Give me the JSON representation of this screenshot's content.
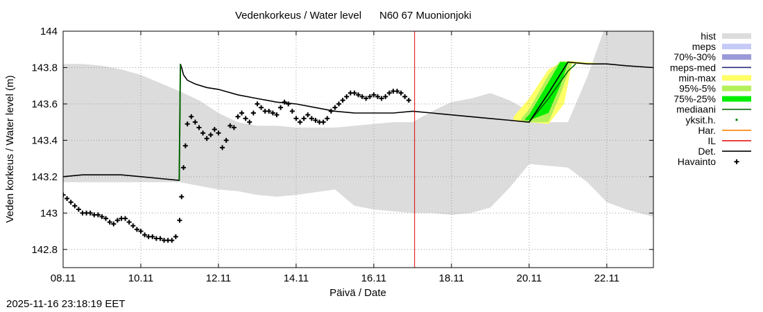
{
  "chart_data": {
    "type": "line",
    "title_left": "Vedenkorkeus / Water level",
    "title_right": "N60 67 Muonionjoki",
    "xlabel": "Päivä / Date",
    "ylabel": "Veden korkeus / Water level (m)",
    "x_unit": "days since 08.11",
    "xlim": [
      0,
      15.2
    ],
    "ylim": [
      142.7,
      144.0
    ],
    "grid": true,
    "x_ticks": [
      {
        "x": 0,
        "label": "08.11"
      },
      {
        "x": 2,
        "label": "10.11"
      },
      {
        "x": 4,
        "label": "12.11"
      },
      {
        "x": 6,
        "label": "14.11"
      },
      {
        "x": 8,
        "label": "16.11"
      },
      {
        "x": 10,
        "label": "18.11"
      },
      {
        "x": 12,
        "label": "20.11"
      },
      {
        "x": 14,
        "label": "22.11"
      }
    ],
    "y_ticks": [
      {
        "y": 142.8,
        "label": "142.8"
      },
      {
        "y": 143.0,
        "label": "143"
      },
      {
        "y": 143.2,
        "label": "143.2"
      },
      {
        "y": 143.4,
        "label": "143.4"
      },
      {
        "y": 143.6,
        "label": "143.6"
      },
      {
        "y": 143.8,
        "label": "143.8"
      },
      {
        "y": 144.0,
        "label": "144"
      }
    ],
    "now_line_x": 9.05,
    "legend": {
      "placement": "right",
      "items": [
        {
          "label": "hist",
          "kind": "band",
          "color": "#dcdcdc"
        },
        {
          "label": "meps",
          "kind": "band",
          "color": "#c6caf7"
        },
        {
          "label": "70%-30%",
          "kind": "band",
          "color": "#9a9ad9"
        },
        {
          "label": "meps-med",
          "kind": "line",
          "color": "#2a2a7a"
        },
        {
          "label": "min-max",
          "kind": "band",
          "color": "#ffff66"
        },
        {
          "label": "95%-5%",
          "kind": "band",
          "color": "#b4f05a"
        },
        {
          "label": "75%-25%",
          "kind": "band",
          "color": "#00ee00"
        },
        {
          "label": "mediaani",
          "kind": "line",
          "color": "#006400"
        },
        {
          "label": "yksit.h.",
          "kind": "dot",
          "color": "#008000"
        },
        {
          "label": "Har.",
          "kind": "line",
          "color": "#ff8000"
        },
        {
          "label": "IL",
          "kind": "line",
          "color": "#e00000"
        },
        {
          "label": "Det.",
          "kind": "line",
          "color": "#000000"
        },
        {
          "label": "Havainto",
          "kind": "plus",
          "color": "#000000"
        }
      ]
    },
    "series": [
      {
        "name": "hist",
        "type": "band",
        "x": [
          0,
          0.5,
          1,
          1.5,
          2,
          3,
          3.5,
          4,
          4.5,
          5,
          5.5,
          6,
          7,
          7.5,
          8,
          8.5,
          9,
          9.5,
          10,
          10.5,
          11,
          11.5,
          12,
          12.5,
          13,
          13.5,
          14,
          14.5,
          15.2
        ],
        "upper": [
          143.82,
          143.82,
          143.81,
          143.79,
          143.76,
          143.67,
          143.62,
          143.55,
          143.5,
          143.48,
          143.48,
          143.47,
          143.47,
          143.48,
          143.49,
          143.5,
          143.5,
          143.56,
          143.61,
          143.63,
          143.66,
          143.62,
          143.56,
          143.5,
          143.5,
          143.75,
          144.05,
          144.05,
          144.05
        ],
        "lower": [
          143.17,
          143.17,
          143.17,
          143.17,
          143.17,
          143.17,
          143.15,
          143.13,
          143.12,
          143.1,
          143.09,
          143.1,
          143.13,
          143.04,
          143.02,
          143.01,
          143.0,
          143.0,
          142.99,
          143.0,
          143.03,
          143.14,
          143.27,
          143.26,
          143.25,
          143.17,
          143.06,
          143.02,
          142.98
        ]
      },
      {
        "name": "min-max",
        "type": "band",
        "x": [
          11.6,
          12.0,
          12.5,
          12.9,
          13.1,
          14.0
        ],
        "upper": [
          143.53,
          143.63,
          143.79,
          143.835,
          143.835,
          143.82
        ],
        "lower": [
          143.51,
          143.5,
          143.49,
          143.6,
          143.82,
          143.82
        ]
      },
      {
        "name": "95%-5%",
        "type": "band",
        "x": [
          11.8,
          12.0,
          12.5,
          12.8,
          13.1,
          13.6
        ],
        "upper": [
          143.52,
          143.57,
          143.76,
          143.835,
          143.83,
          143.825
        ],
        "lower": [
          143.51,
          143.5,
          143.5,
          143.65,
          143.825,
          143.825
        ]
      },
      {
        "name": "75%-25%",
        "type": "band",
        "x": [
          11.9,
          12.0,
          12.5,
          12.8,
          13.0
        ],
        "upper": [
          143.52,
          143.54,
          143.72,
          143.83,
          143.83
        ],
        "lower": [
          143.51,
          143.51,
          143.55,
          143.7,
          143.825
        ]
      },
      {
        "name": "mediaani",
        "type": "line",
        "x": [
          12.0,
          12.5,
          13.0,
          13.2
        ],
        "y": [
          143.5,
          143.63,
          143.78,
          143.82
        ]
      },
      {
        "name": "Det.",
        "type": "line",
        "x": [
          0,
          0.5,
          1,
          1.5,
          2,
          2.5,
          2.99,
          3.02,
          3.05,
          3.1,
          3.2,
          3.4,
          3.7,
          4,
          4.5,
          5,
          5.5,
          6,
          6.5,
          7,
          7.5,
          8,
          8.5,
          9,
          9.5,
          10,
          10.5,
          11,
          11.5,
          12,
          12.5,
          13,
          13.5,
          14,
          14.5,
          15.2
        ],
        "y": [
          143.2,
          143.21,
          143.21,
          143.21,
          143.2,
          143.19,
          143.18,
          143.82,
          143.8,
          143.76,
          143.73,
          143.71,
          143.69,
          143.68,
          143.65,
          143.63,
          143.61,
          143.6,
          143.58,
          143.56,
          143.55,
          143.55,
          143.55,
          143.56,
          143.55,
          143.54,
          143.53,
          143.52,
          143.51,
          143.5,
          143.66,
          143.83,
          143.82,
          143.82,
          143.81,
          143.8
        ]
      },
      {
        "name": "Havainto",
        "type": "scatter",
        "x": [
          0,
          0.1,
          0.2,
          0.3,
          0.4,
          0.5,
          0.6,
          0.7,
          0.8,
          0.9,
          1.0,
          1.1,
          1.2,
          1.3,
          1.4,
          1.5,
          1.6,
          1.7,
          1.8,
          1.9,
          2.0,
          2.1,
          2.2,
          2.3,
          2.4,
          2.5,
          2.6,
          2.7,
          2.8,
          2.9,
          3.0,
          3.05,
          3.1,
          3.15,
          3.2,
          3.3,
          3.4,
          3.5,
          3.6,
          3.7,
          3.8,
          3.9,
          4.0,
          4.1,
          4.2,
          4.3,
          4.4,
          4.5,
          4.6,
          4.7,
          4.8,
          4.9,
          5.0,
          5.1,
          5.2,
          5.3,
          5.4,
          5.5,
          5.6,
          5.7,
          5.8,
          5.9,
          6.0,
          6.1,
          6.2,
          6.3,
          6.4,
          6.5,
          6.6,
          6.7,
          6.8,
          6.9,
          7.0,
          7.1,
          7.2,
          7.3,
          7.4,
          7.5,
          7.6,
          7.7,
          7.8,
          7.9,
          8.0,
          8.1,
          8.2,
          8.3,
          8.4,
          8.5,
          8.6,
          8.7,
          8.8,
          8.9
        ],
        "y": [
          143.1,
          143.08,
          143.06,
          143.04,
          143.02,
          143.0,
          143.0,
          143.0,
          142.99,
          142.99,
          142.98,
          142.97,
          142.95,
          142.94,
          142.96,
          142.97,
          142.97,
          142.95,
          142.93,
          142.91,
          142.9,
          142.88,
          142.87,
          142.87,
          142.86,
          142.86,
          142.85,
          142.85,
          142.85,
          142.87,
          142.96,
          143.09,
          143.25,
          143.37,
          143.49,
          143.53,
          143.5,
          143.47,
          143.44,
          143.41,
          143.43,
          143.46,
          143.44,
          143.36,
          143.4,
          143.48,
          143.47,
          143.53,
          143.55,
          143.52,
          143.5,
          143.55,
          143.6,
          143.58,
          143.56,
          143.56,
          143.55,
          143.54,
          143.58,
          143.61,
          143.6,
          143.56,
          143.52,
          143.5,
          143.52,
          143.54,
          143.52,
          143.51,
          143.5,
          143.5,
          143.52,
          143.56,
          143.58,
          143.6,
          143.62,
          143.64,
          143.66,
          143.66,
          143.65,
          143.64,
          143.63,
          143.64,
          143.65,
          143.64,
          143.63,
          143.64,
          143.66,
          143.67,
          143.67,
          143.66,
          143.64,
          143.62
        ]
      }
    ]
  },
  "timestamp": "2025-11-16 23:18:19 EET"
}
